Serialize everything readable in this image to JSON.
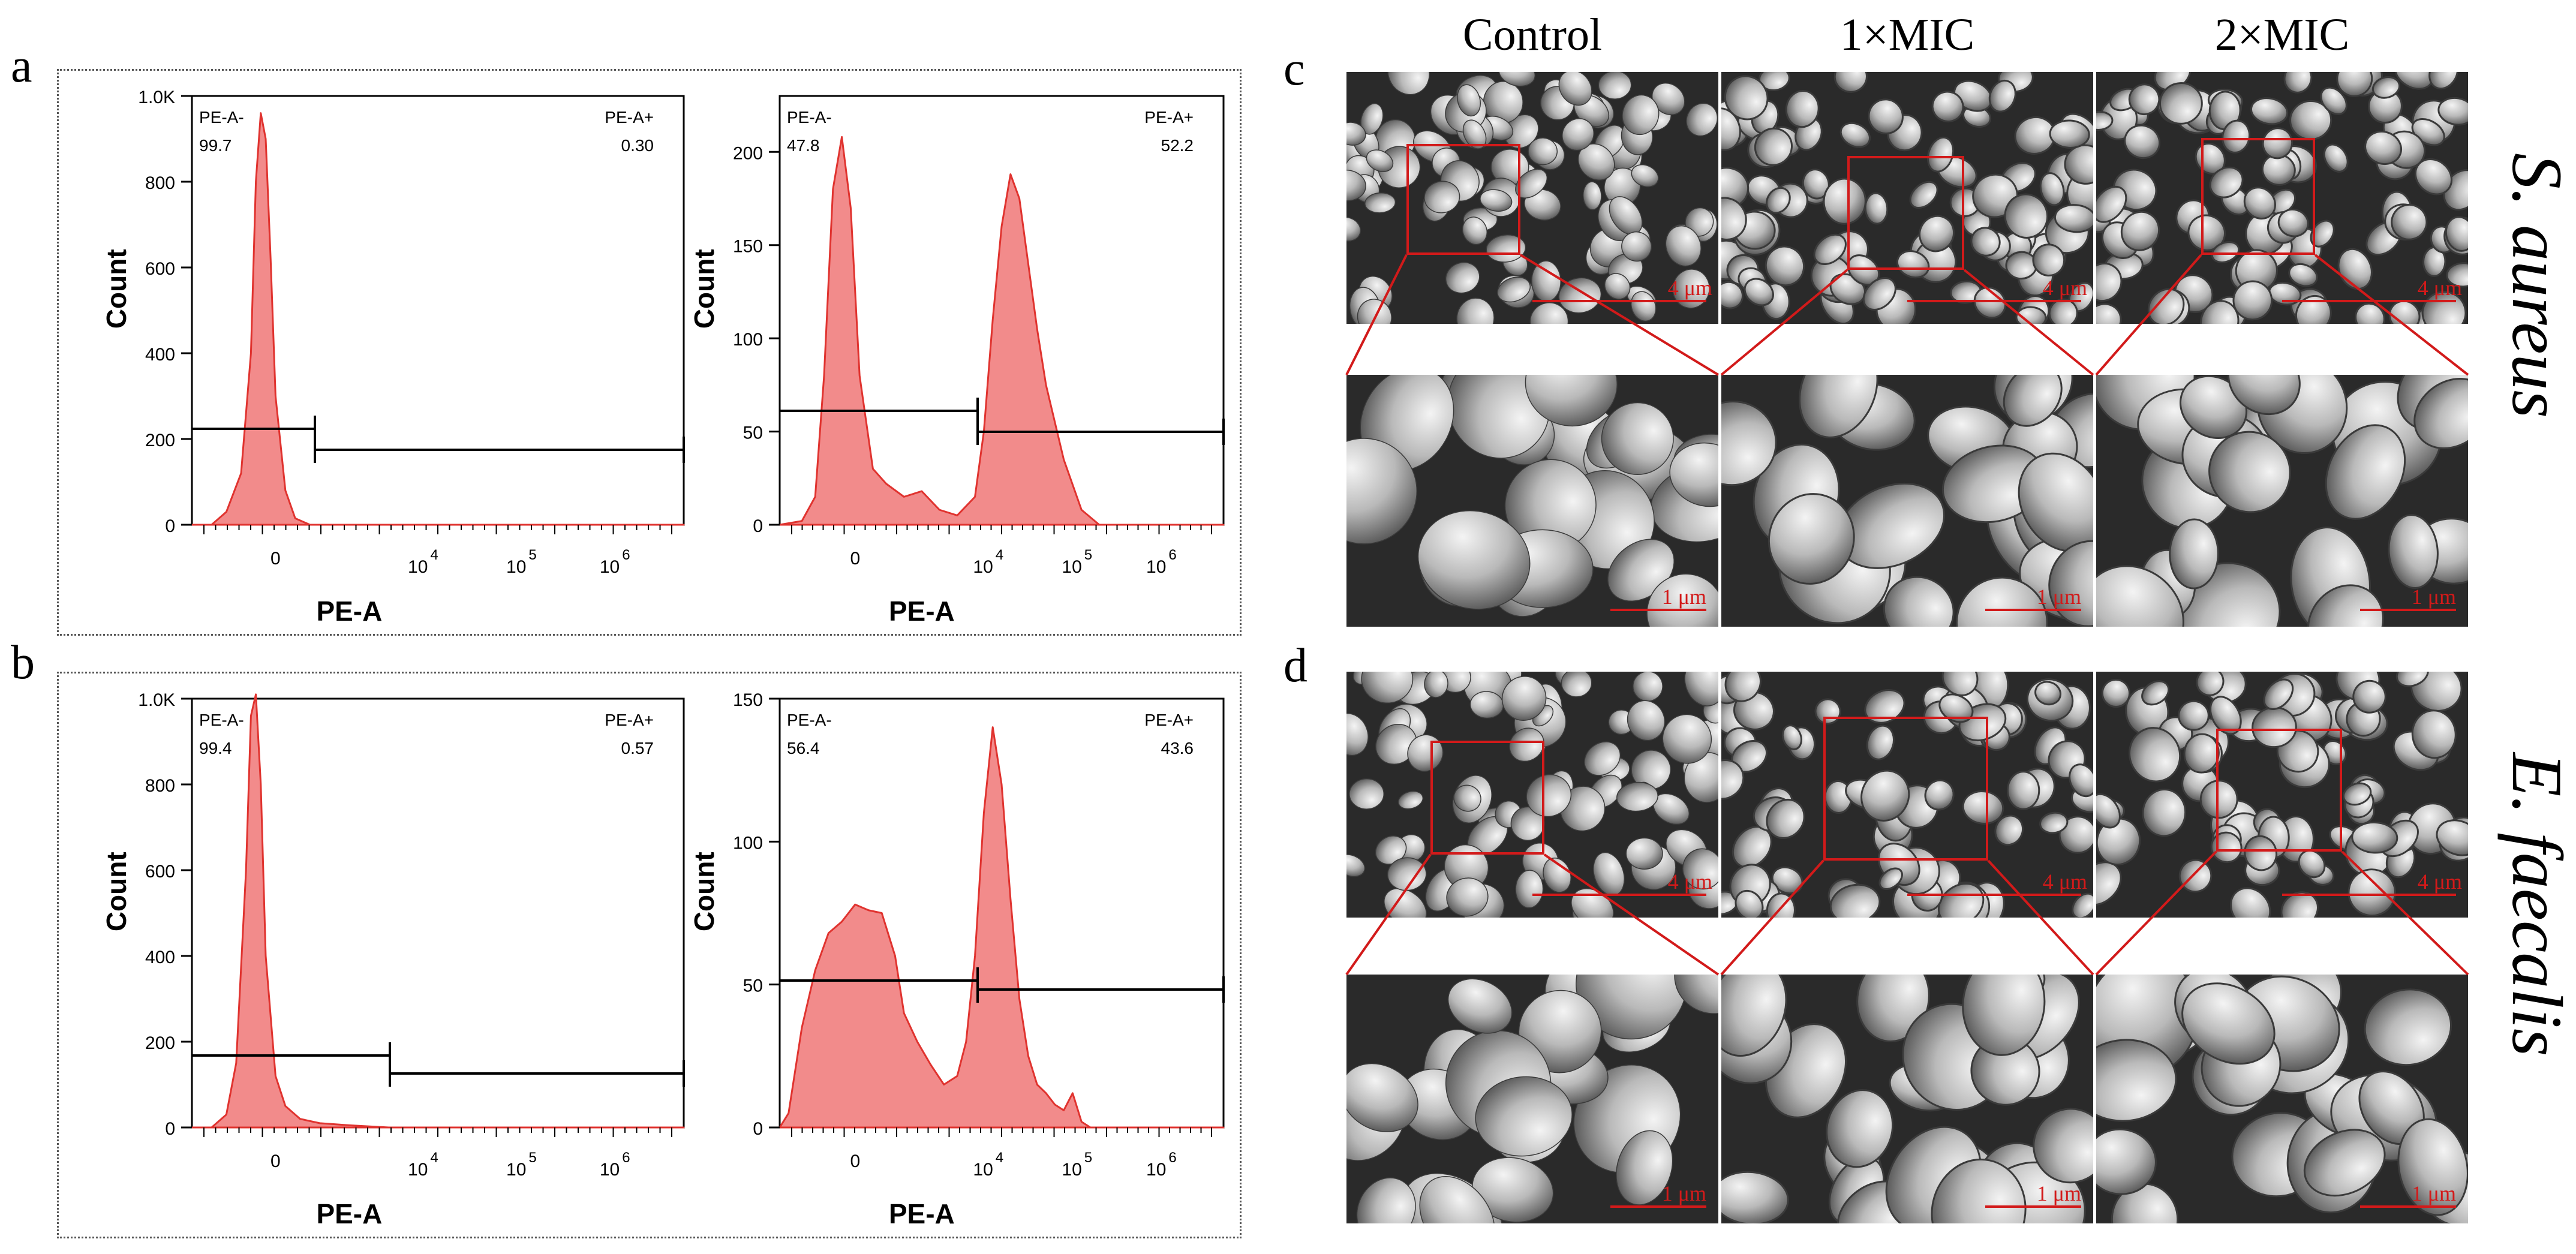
{
  "panel_letters": {
    "a": "a",
    "b": "b",
    "c": "c",
    "d": "d"
  },
  "colors": {
    "fill": "#f28b8b",
    "line": "#e0332f",
    "scale": "#d21a1a"
  },
  "chart_data": [
    {
      "id": "a-left",
      "type": "area",
      "xlabel": "PE-A",
      "ylabel": "Count",
      "yticks": [
        "0",
        "200",
        "400",
        "600",
        "800",
        "1.0K"
      ],
      "ylim": [
        0,
        1000
      ],
      "xticks": [
        "0",
        "10^4",
        "10^5",
        "10^6"
      ],
      "gate_left": {
        "name": "PE-A-",
        "value": "99.7"
      },
      "gate_right": {
        "name": "PE-A+",
        "value": "0.30"
      },
      "series": [
        {
          "x": [
            0,
            4,
            7,
            10,
            12,
            13,
            14,
            15,
            16,
            17,
            19,
            21,
            24,
            100
          ],
          "values": [
            0,
            0,
            30,
            120,
            400,
            800,
            960,
            900,
            620,
            300,
            80,
            15,
            0,
            0
          ]
        }
      ]
    },
    {
      "id": "a-right",
      "type": "area",
      "xlabel": "PE-A",
      "ylabel": "Count",
      "yticks": [
        "0",
        "50",
        "100",
        "150",
        "200"
      ],
      "ylim": [
        0,
        230
      ],
      "xticks": [
        "0",
        "10^4",
        "10^5",
        "10^6"
      ],
      "gate_left": {
        "name": "PE-A-",
        "value": "47.8"
      },
      "gate_right": {
        "name": "PE-A+",
        "value": "52.2"
      },
      "series": [
        {
          "x": [
            0,
            5,
            8,
            10,
            12,
            14,
            16,
            18,
            21,
            24,
            28,
            32,
            36,
            40,
            44,
            46,
            48,
            50,
            52,
            54,
            56,
            58,
            60,
            64,
            68,
            72,
            100
          ],
          "values": [
            0,
            2,
            15,
            80,
            180,
            208,
            170,
            80,
            30,
            22,
            15,
            18,
            8,
            5,
            15,
            50,
            110,
            160,
            188,
            175,
            140,
            105,
            75,
            35,
            8,
            0,
            0
          ]
        }
      ]
    },
    {
      "id": "b-left",
      "type": "area",
      "xlabel": "PE-A",
      "ylabel": "Count",
      "yticks": [
        "0",
        "200",
        "400",
        "600",
        "800",
        "1.0K"
      ],
      "ylim": [
        0,
        1000
      ],
      "xticks": [
        "0",
        "10^4",
        "10^5",
        "10^6"
      ],
      "gate_left": {
        "name": "PE-A-",
        "value": "99.4"
      },
      "gate_right": {
        "name": "PE-A+",
        "value": "0.57"
      },
      "series": [
        {
          "x": [
            0,
            4,
            7,
            9,
            11,
            12,
            13,
            14,
            15,
            17,
            19,
            22,
            26,
            32,
            40,
            100
          ],
          "values": [
            0,
            0,
            30,
            150,
            600,
            960,
            1010,
            800,
            400,
            120,
            50,
            20,
            10,
            5,
            0,
            0
          ]
        }
      ]
    },
    {
      "id": "b-right",
      "type": "area",
      "xlabel": "PE-A",
      "ylabel": "Count",
      "yticks": [
        "0",
        "50",
        "100",
        "150"
      ],
      "ylim": [
        0,
        150
      ],
      "xticks": [
        "0",
        "10^4",
        "10^5",
        "10^6"
      ],
      "gate_left": {
        "name": "PE-A-",
        "value": "56.4"
      },
      "gate_right": {
        "name": "PE-A+",
        "value": "43.6"
      },
      "series": [
        {
          "x": [
            0,
            2,
            5,
            8,
            11,
            14,
            17,
            20,
            23,
            26,
            28,
            31,
            34,
            37,
            40,
            42,
            44,
            46,
            48,
            50,
            52,
            54,
            56,
            58,
            60,
            62,
            64,
            66,
            68,
            70,
            75,
            100
          ],
          "values": [
            0,
            5,
            35,
            55,
            68,
            72,
            78,
            76,
            75,
            60,
            40,
            30,
            22,
            15,
            18,
            30,
            60,
            110,
            140,
            120,
            80,
            45,
            25,
            15,
            12,
            8,
            6,
            12,
            2,
            0,
            0,
            0
          ]
        }
      ]
    }
  ],
  "sem": {
    "columns": [
      "Control",
      "1×MIC",
      "2×MIC"
    ],
    "species": [
      "S. aureus",
      "E. faecalis"
    ],
    "scale_overview": "4 μm",
    "scale_zoom": "1 μm"
  }
}
